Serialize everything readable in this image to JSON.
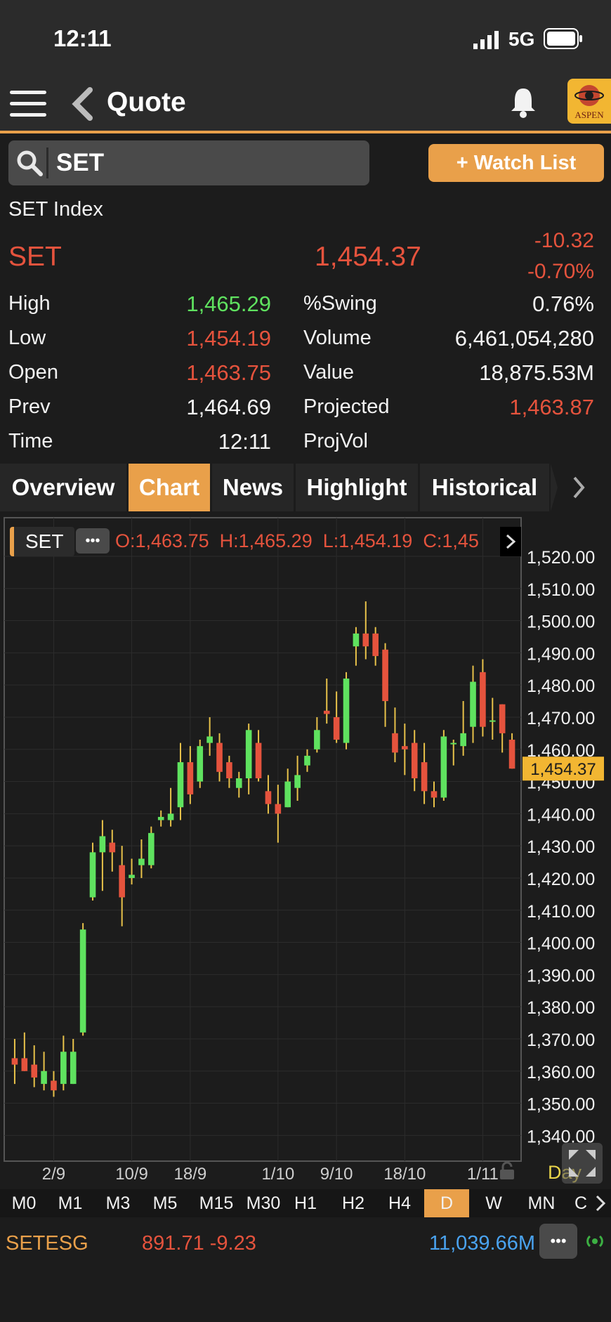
{
  "status": {
    "time": "12:11",
    "network": "5G"
  },
  "nav": {
    "title": "Quote",
    "logo_text": "ASPEN"
  },
  "search": {
    "value": "SET",
    "watchlist_label": "+ Watch List"
  },
  "quote": {
    "name": "SET Index",
    "symbol": "SET",
    "last": "1,454.37",
    "change": "-10.32",
    "change_pct": "-0.70%",
    "left": [
      {
        "label": "High",
        "value": "1,465.29",
        "color": "green"
      },
      {
        "label": "Low",
        "value": "1,454.19",
        "color": "red"
      },
      {
        "label": "Open",
        "value": "1,463.75",
        "color": "red"
      },
      {
        "label": "Prev",
        "value": "1,464.69",
        "color": "white"
      },
      {
        "label": "Time",
        "value": "12:11",
        "color": "white"
      }
    ],
    "right": [
      {
        "label": "%Swing",
        "value": "0.76%",
        "color": "white"
      },
      {
        "label": "Volume",
        "value": "6,461,054,280",
        "color": "white"
      },
      {
        "label": "Value",
        "value": "18,875.53M",
        "color": "white"
      },
      {
        "label": "Projected",
        "value": "1,463.87",
        "color": "red"
      },
      {
        "label": "ProjVol",
        "value": "",
        "color": "white"
      }
    ]
  },
  "tabs": [
    "Overview",
    "Chart",
    "News",
    "Highlight",
    "Historical"
  ],
  "active_tab": "Chart",
  "chart_header": {
    "symbol": "SET",
    "more": "•••",
    "ohlc": "O:1,463.75  H:1,465.29  L:1,454.19  C:1,45"
  },
  "chart_data": {
    "type": "candlestick",
    "ylim": [
      1332,
      1532
    ],
    "y_ticks": [
      "1,520.00",
      "1,510.00",
      "1,500.00",
      "1,490.00",
      "1,480.00",
      "1,470.00",
      "1,460.00",
      "1,450.00",
      "1,440.00",
      "1,430.00",
      "1,420.00",
      "1,410.00",
      "1,400.00",
      "1,390.00",
      "1,380.00",
      "1,370.00",
      "1,360.00",
      "1,350.00",
      "1,340.00"
    ],
    "y_tick_values": [
      1520,
      1510,
      1500,
      1490,
      1480,
      1470,
      1460,
      1450,
      1440,
      1430,
      1420,
      1410,
      1400,
      1390,
      1380,
      1370,
      1360,
      1350,
      1340
    ],
    "x_labels": [
      "2/9",
      "10/9",
      "18/9",
      "1/10",
      "9/10",
      "18/10",
      "1/11"
    ],
    "x_label_index": [
      4,
      12,
      18,
      27,
      33,
      40,
      48
    ],
    "last_price_label": "1,454.37",
    "candles": [
      {
        "o": 1364,
        "h": 1370,
        "l": 1356,
        "c": 1362
      },
      {
        "o": 1364,
        "h": 1372,
        "l": 1360,
        "c": 1360
      },
      {
        "o": 1362,
        "h": 1368,
        "l": 1355,
        "c": 1358
      },
      {
        "o": 1356,
        "h": 1366,
        "l": 1354,
        "c": 1360
      },
      {
        "o": 1357,
        "h": 1360,
        "l": 1352,
        "c": 1354
      },
      {
        "o": 1356,
        "h": 1371,
        "l": 1354,
        "c": 1366
      },
      {
        "o": 1356,
        "h": 1370,
        "l": 1356,
        "c": 1366
      },
      {
        "o": 1372,
        "h": 1406,
        "l": 1371,
        "c": 1404
      },
      {
        "o": 1414,
        "h": 1431,
        "l": 1413,
        "c": 1428
      },
      {
        "o": 1428,
        "h": 1438,
        "l": 1416,
        "c": 1433
      },
      {
        "o": 1431,
        "h": 1435,
        "l": 1422,
        "c": 1428
      },
      {
        "o": 1424,
        "h": 1430,
        "l": 1405,
        "c": 1414
      },
      {
        "o": 1420,
        "h": 1426,
        "l": 1418,
        "c": 1421
      },
      {
        "o": 1424,
        "h": 1432,
        "l": 1420,
        "c": 1426
      },
      {
        "o": 1424,
        "h": 1436,
        "l": 1423,
        "c": 1434
      },
      {
        "o": 1438,
        "h": 1441,
        "l": 1436,
        "c": 1439
      },
      {
        "o": 1438,
        "h": 1448,
        "l": 1436,
        "c": 1440
      },
      {
        "o": 1442,
        "h": 1462,
        "l": 1438,
        "c": 1456
      },
      {
        "o": 1456,
        "h": 1461,
        "l": 1443,
        "c": 1446
      },
      {
        "o": 1450,
        "h": 1463,
        "l": 1448,
        "c": 1461
      },
      {
        "o": 1462,
        "h": 1470,
        "l": 1458,
        "c": 1464
      },
      {
        "o": 1462,
        "h": 1465,
        "l": 1450,
        "c": 1453
      },
      {
        "o": 1456,
        "h": 1458,
        "l": 1448,
        "c": 1451
      },
      {
        "o": 1448,
        "h": 1453,
        "l": 1445,
        "c": 1451
      },
      {
        "o": 1451,
        "h": 1468,
        "l": 1446,
        "c": 1466
      },
      {
        "o": 1462,
        "h": 1466,
        "l": 1450,
        "c": 1451
      },
      {
        "o": 1447,
        "h": 1452,
        "l": 1440,
        "c": 1443
      },
      {
        "o": 1443,
        "h": 1449,
        "l": 1431,
        "c": 1440
      },
      {
        "o": 1442,
        "h": 1454,
        "l": 1442,
        "c": 1450
      },
      {
        "o": 1448,
        "h": 1458,
        "l": 1444,
        "c": 1452
      },
      {
        "o": 1455,
        "h": 1460,
        "l": 1453,
        "c": 1458
      },
      {
        "o": 1460,
        "h": 1470,
        "l": 1459,
        "c": 1466
      },
      {
        "o": 1472,
        "h": 1482,
        "l": 1468,
        "c": 1471
      },
      {
        "o": 1470,
        "h": 1478,
        "l": 1462,
        "c": 1463
      },
      {
        "o": 1462,
        "h": 1484,
        "l": 1460,
        "c": 1482
      },
      {
        "o": 1492,
        "h": 1498,
        "l": 1486,
        "c": 1496
      },
      {
        "o": 1496,
        "h": 1506,
        "l": 1488,
        "c": 1492
      },
      {
        "o": 1496,
        "h": 1498,
        "l": 1486,
        "c": 1489
      },
      {
        "o": 1491,
        "h": 1493,
        "l": 1467,
        "c": 1475
      },
      {
        "o": 1465,
        "h": 1473,
        "l": 1456,
        "c": 1459
      },
      {
        "o": 1461,
        "h": 1468,
        "l": 1452,
        "c": 1460
      },
      {
        "o": 1462,
        "h": 1466,
        "l": 1447,
        "c": 1451
      },
      {
        "o": 1456,
        "h": 1462,
        "l": 1443,
        "c": 1447
      },
      {
        "o": 1447,
        "h": 1450,
        "l": 1442,
        "c": 1445
      },
      {
        "o": 1445,
        "h": 1466,
        "l": 1444,
        "c": 1464
      },
      {
        "o": 1462,
        "h": 1463,
        "l": 1455,
        "c": 1462
      },
      {
        "o": 1461,
        "h": 1475,
        "l": 1458,
        "c": 1465
      },
      {
        "o": 1467,
        "h": 1486,
        "l": 1462,
        "c": 1481
      },
      {
        "o": 1484,
        "h": 1488,
        "l": 1464,
        "c": 1467
      },
      {
        "o": 1469,
        "h": 1476,
        "l": 1463,
        "c": 1469
      },
      {
        "o": 1474,
        "h": 1474,
        "l": 1459,
        "c": 1465
      },
      {
        "o": 1463,
        "h": 1465,
        "l": 1454,
        "c": 1454
      }
    ]
  },
  "chart_footer": {
    "period_label": "Day"
  },
  "timeframes": [
    "M0",
    "M1",
    "M3",
    "M5",
    "M15",
    "M30",
    "H1",
    "H2",
    "H4",
    "D",
    "W",
    "MN",
    "C"
  ],
  "active_timeframe": "D",
  "ticker": {
    "symbol": "SETESG",
    "price_change": "891.71 -9.23",
    "value": "11,039.66M",
    "more": "•••"
  },
  "colors": {
    "accent": "#e9a04a",
    "up": "#5fe25f",
    "down": "#e5533d",
    "bg": "#1c1c1c",
    "value_blue": "#4aa3f0"
  }
}
